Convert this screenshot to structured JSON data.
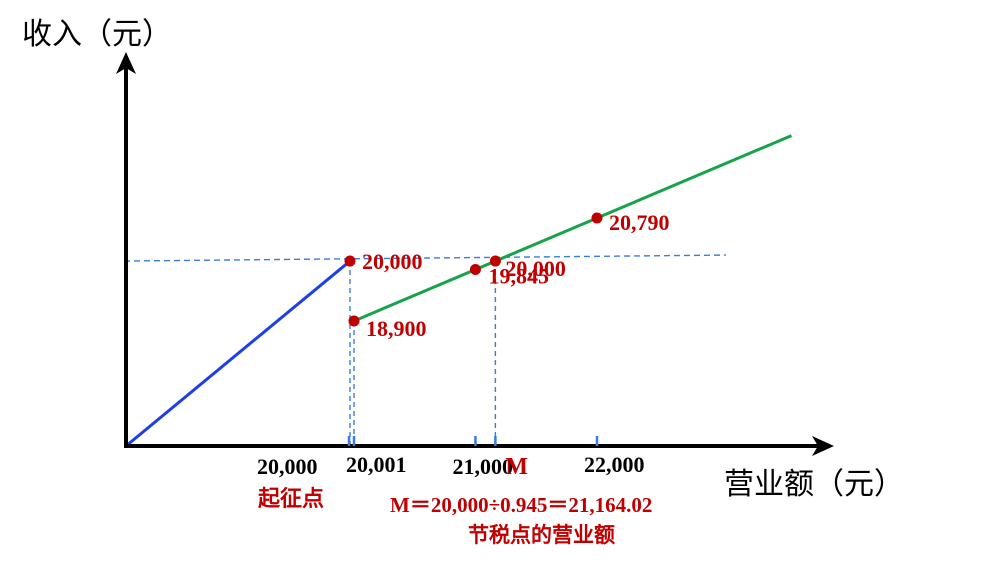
{
  "chart_data": {
    "type": "line",
    "ylabel": "收入（元）",
    "xlabel": "营业额（元）",
    "colors": {
      "base_line": "#1f3fe6",
      "tax_line": "#16a34a",
      "guide": "#3b7dd8",
      "points": "#c00000",
      "axes": "#000000",
      "text_red": "#c00000"
    },
    "x_tick_labels": [
      "20,000",
      "20,001",
      "21,000",
      "M",
      "22,000"
    ],
    "x_tick_values": [
      20000,
      20001,
      21000,
      21164.02,
      22000
    ],
    "series": [
      {
        "style": "blue",
        "points": [
          {
            "x": 0,
            "y": 0
          },
          {
            "x": 20000,
            "y": 20000
          }
        ]
      },
      {
        "style": "green",
        "points": [
          {
            "x": 20001,
            "y": 18900
          },
          {
            "x": 23600,
            "y": 22302
          }
        ]
      }
    ],
    "markers": [
      {
        "x": 20000,
        "y": 20000,
        "label": "20,000"
      },
      {
        "x": 20001,
        "y": 18900,
        "label": "18,900"
      },
      {
        "x": 21000,
        "y": 19845,
        "label": "19,845"
      },
      {
        "x": 21164.02,
        "y": 20000,
        "label": "20,000"
      },
      {
        "x": 22000,
        "y": 20790,
        "label": "20,790"
      }
    ],
    "horizontal_ref_y": 20000,
    "annotations": {
      "threshold_label": "起征点",
      "m_formula": "M＝20,000÷0.945＝21,164.02",
      "m_caption": "节税点的营业额"
    }
  }
}
